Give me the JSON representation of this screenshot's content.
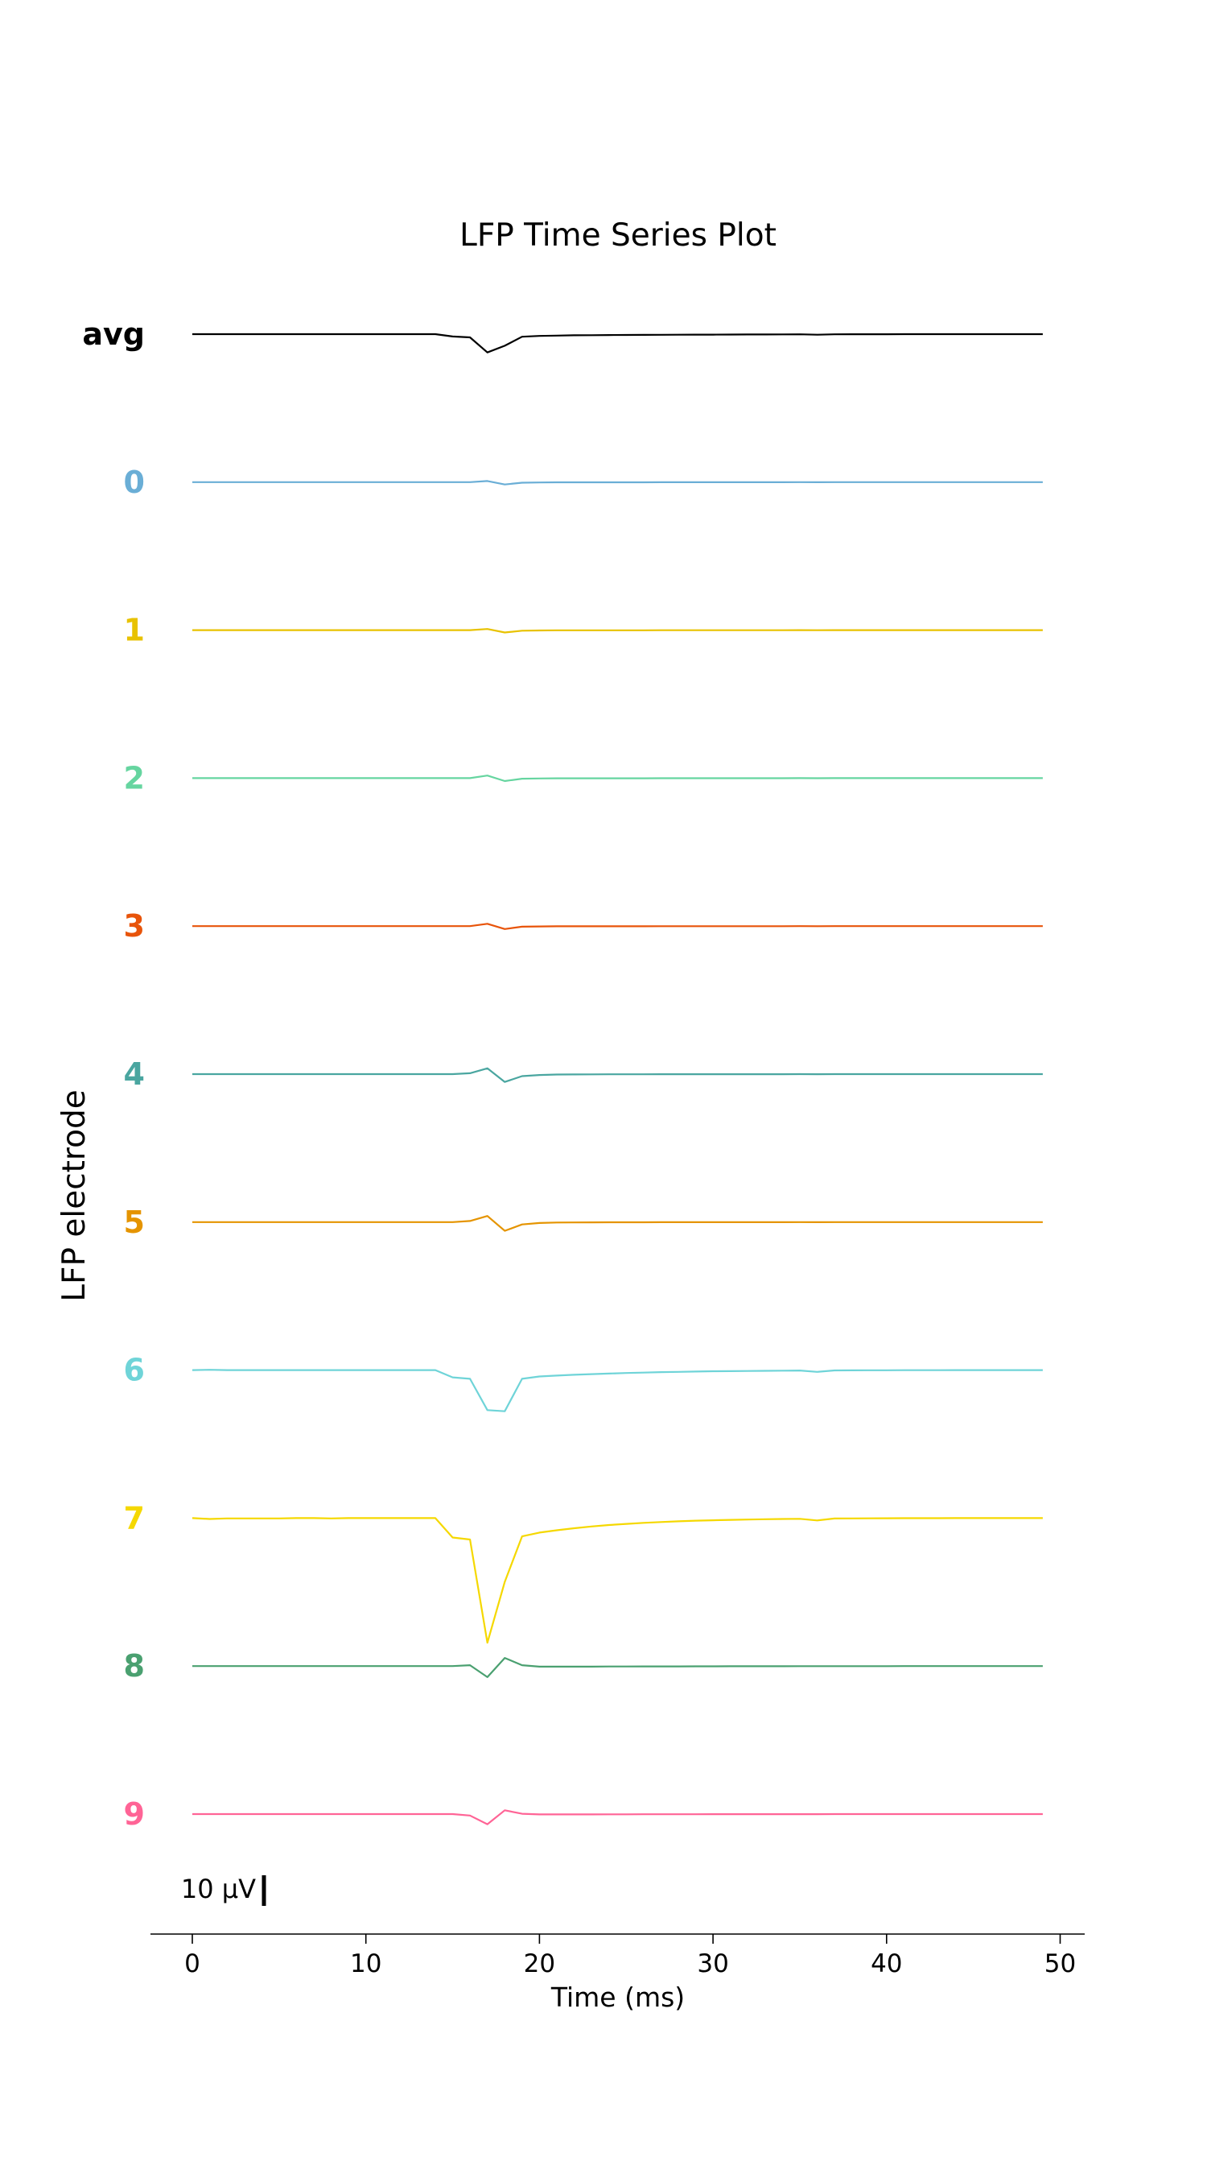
{
  "chart_data": {
    "type": "line",
    "title": "LFP Time Series Plot",
    "xlabel": "Time (ms)",
    "ylabel": "LFP electrode",
    "xlim": [
      -2.4,
      51.4
    ],
    "xticks": [
      0,
      10,
      20,
      30,
      40,
      50
    ],
    "grid": false,
    "scalebar": {
      "label": "10 μV",
      "value_uV": 10
    },
    "x": [
      0,
      1,
      2,
      3,
      4,
      5,
      6,
      7,
      8,
      9,
      10,
      11,
      12,
      13,
      14,
      15,
      16,
      17,
      18,
      19,
      20,
      21,
      22,
      23,
      24,
      25,
      26,
      27,
      28,
      29,
      30,
      31,
      32,
      33,
      34,
      35,
      36,
      37,
      38,
      39,
      40,
      41,
      42,
      43,
      44,
      45,
      46,
      47,
      48,
      49
    ],
    "series": [
      {
        "name": "avg",
        "color": "#000000",
        "values": [
          0,
          0,
          0,
          0,
          0,
          0,
          0,
          0,
          0,
          0,
          0,
          0,
          0,
          0,
          0,
          -0.8,
          -1.1,
          -6.3,
          -4.0,
          -0.9,
          -0.6,
          -0.5,
          -0.4,
          -0.35,
          -0.3,
          -0.28,
          -0.25,
          -0.22,
          -0.2,
          -0.18,
          -0.16,
          -0.14,
          -0.12,
          -0.1,
          -0.08,
          -0.06,
          -0.2,
          -0.05,
          -0.04,
          -0.03,
          -0.02,
          0,
          0,
          0,
          0,
          0,
          0,
          0,
          0,
          0
        ]
      },
      {
        "name": "0",
        "color": "#6aaed6",
        "values": [
          0,
          0,
          0,
          0,
          0,
          0,
          0,
          0,
          0,
          0,
          0,
          0,
          0,
          0,
          0,
          0,
          0,
          0.4,
          -0.8,
          -0.2,
          -0.1,
          -0.05,
          -0.05,
          -0.05,
          -0.05,
          -0.05,
          -0.05,
          -0.04,
          -0.04,
          -0.03,
          -0.03,
          -0.03,
          -0.02,
          -0.02,
          -0.02,
          -0.01,
          -0.02,
          -0.01,
          -0.01,
          -0.01,
          0,
          0,
          0,
          0,
          0,
          0,
          0,
          0,
          0,
          0
        ]
      },
      {
        "name": "1",
        "color": "#e8c200",
        "values": [
          0,
          0,
          0,
          0,
          0,
          0,
          0,
          0,
          0,
          0,
          0,
          0,
          0,
          0,
          0,
          0,
          0,
          0.4,
          -0.8,
          -0.2,
          -0.1,
          -0.05,
          -0.05,
          -0.05,
          -0.05,
          -0.05,
          -0.05,
          -0.04,
          -0.04,
          -0.03,
          -0.03,
          -0.03,
          -0.02,
          -0.02,
          -0.02,
          -0.01,
          -0.02,
          -0.01,
          -0.01,
          -0.01,
          0,
          0,
          0,
          0,
          0,
          0,
          0,
          0,
          0,
          0
        ]
      },
      {
        "name": "2",
        "color": "#66d5a0",
        "values": [
          0,
          0,
          0,
          0,
          0,
          0,
          0,
          0,
          0,
          0,
          0,
          0,
          0,
          0,
          0,
          0,
          0,
          0.9,
          -1.0,
          -0.2,
          -0.1,
          -0.05,
          -0.05,
          -0.05,
          -0.05,
          -0.05,
          -0.05,
          -0.04,
          -0.04,
          -0.03,
          -0.03,
          -0.03,
          -0.02,
          -0.02,
          -0.02,
          -0.01,
          -0.02,
          -0.01,
          -0.01,
          -0.01,
          0,
          0,
          0,
          0,
          0,
          0,
          0,
          0,
          0,
          0
        ]
      },
      {
        "name": "3",
        "color": "#e8540a",
        "values": [
          0,
          0,
          0,
          0,
          0,
          0,
          0,
          0,
          0,
          0,
          0,
          0,
          0,
          0,
          0,
          0,
          0,
          0.8,
          -1.0,
          -0.2,
          -0.1,
          -0.05,
          -0.05,
          -0.05,
          -0.05,
          -0.05,
          -0.05,
          -0.04,
          -0.04,
          -0.03,
          -0.03,
          -0.03,
          -0.02,
          -0.02,
          -0.02,
          -0.01,
          -0.02,
          -0.01,
          -0.01,
          -0.01,
          0,
          0,
          0,
          0,
          0,
          0,
          0,
          0,
          0,
          0
        ]
      },
      {
        "name": "4",
        "color": "#4aa6a0",
        "values": [
          0,
          0,
          0,
          0,
          0,
          0,
          0,
          0,
          0,
          0,
          0,
          0,
          0,
          0,
          0,
          0,
          0.3,
          2.0,
          -2.7,
          -0.7,
          -0.3,
          -0.15,
          -0.1,
          -0.08,
          -0.06,
          -0.05,
          -0.05,
          -0.04,
          -0.04,
          -0.03,
          -0.03,
          -0.03,
          -0.02,
          -0.02,
          -0.02,
          -0.01,
          -0.02,
          -0.01,
          -0.01,
          -0.01,
          0,
          0,
          0,
          0,
          0,
          0,
          0,
          0,
          0,
          0
        ]
      },
      {
        "name": "5",
        "color": "#e59400",
        "values": [
          0,
          0,
          0,
          0,
          0,
          0,
          0,
          0,
          0,
          0,
          0,
          0,
          0,
          0,
          0,
          0,
          0.4,
          2.1,
          -3.0,
          -0.8,
          -0.3,
          -0.15,
          -0.1,
          -0.08,
          -0.06,
          -0.05,
          -0.05,
          -0.04,
          -0.04,
          -0.03,
          -0.03,
          -0.03,
          -0.02,
          -0.02,
          -0.02,
          -0.01,
          -0.02,
          -0.01,
          -0.01,
          -0.01,
          0,
          0,
          0,
          0,
          0,
          0,
          0,
          0,
          0,
          0
        ]
      },
      {
        "name": "6",
        "color": "#6fd4d8",
        "values": [
          0,
          0.1,
          0,
          0,
          0,
          0,
          0,
          0,
          0,
          0,
          0,
          0,
          0,
          0,
          0,
          -2.5,
          -3.0,
          -13.8,
          -14.2,
          -3.0,
          -2.2,
          -1.9,
          -1.6,
          -1.4,
          -1.2,
          -1.0,
          -0.85,
          -0.7,
          -0.6,
          -0.5,
          -0.4,
          -0.35,
          -0.3,
          -0.25,
          -0.2,
          -0.15,
          -0.6,
          -0.1,
          -0.08,
          -0.06,
          -0.05,
          -0.04,
          -0.03,
          -0.02,
          -0.01,
          0,
          0,
          0,
          0,
          0
        ]
      },
      {
        "name": "7",
        "color": "#f5d800",
        "values": [
          0,
          -0.3,
          -0.1,
          -0.1,
          -0.1,
          -0.1,
          0,
          0,
          -0.1,
          0,
          0,
          0,
          0,
          0,
          0,
          -6.7,
          -7.4,
          -43.0,
          -22.0,
          -6.3,
          -5.0,
          -4.2,
          -3.5,
          -2.9,
          -2.4,
          -2.0,
          -1.65,
          -1.35,
          -1.1,
          -0.9,
          -0.75,
          -0.6,
          -0.5,
          -0.4,
          -0.3,
          -0.25,
          -0.8,
          -0.15,
          -0.1,
          -0.08,
          -0.05,
          -0.04,
          -0.03,
          -0.02,
          -0.01,
          0,
          0,
          0,
          0,
          0
        ]
      },
      {
        "name": "8",
        "color": "#4aa070",
        "values": [
          0,
          0,
          0,
          0,
          0,
          0,
          0,
          0,
          0,
          0,
          0,
          0,
          0,
          0,
          0,
          0,
          0.3,
          -3.8,
          2.8,
          0.3,
          -0.2,
          -0.2,
          -0.2,
          -0.2,
          -0.15,
          -0.15,
          -0.1,
          -0.1,
          -0.1,
          -0.08,
          -0.08,
          -0.06,
          -0.06,
          -0.05,
          -0.05,
          -0.04,
          -0.04,
          -0.03,
          -0.03,
          -0.02,
          -0.02,
          -0.01,
          0,
          0,
          0,
          0,
          0,
          0,
          0,
          0
        ]
      },
      {
        "name": "9",
        "color": "#ff6496",
        "values": [
          0,
          0,
          0,
          0,
          0,
          0,
          0,
          0,
          0,
          0,
          0,
          0,
          0,
          0,
          0,
          0,
          -0.5,
          -3.5,
          1.3,
          0.1,
          -0.1,
          -0.1,
          -0.1,
          -0.1,
          -0.08,
          -0.08,
          -0.06,
          -0.06,
          -0.05,
          -0.05,
          -0.04,
          -0.04,
          -0.03,
          -0.03,
          -0.02,
          -0.02,
          -0.02,
          -0.01,
          -0.01,
          0,
          0,
          0,
          0,
          0,
          0,
          0,
          0,
          0,
          0,
          0
        ]
      }
    ]
  }
}
